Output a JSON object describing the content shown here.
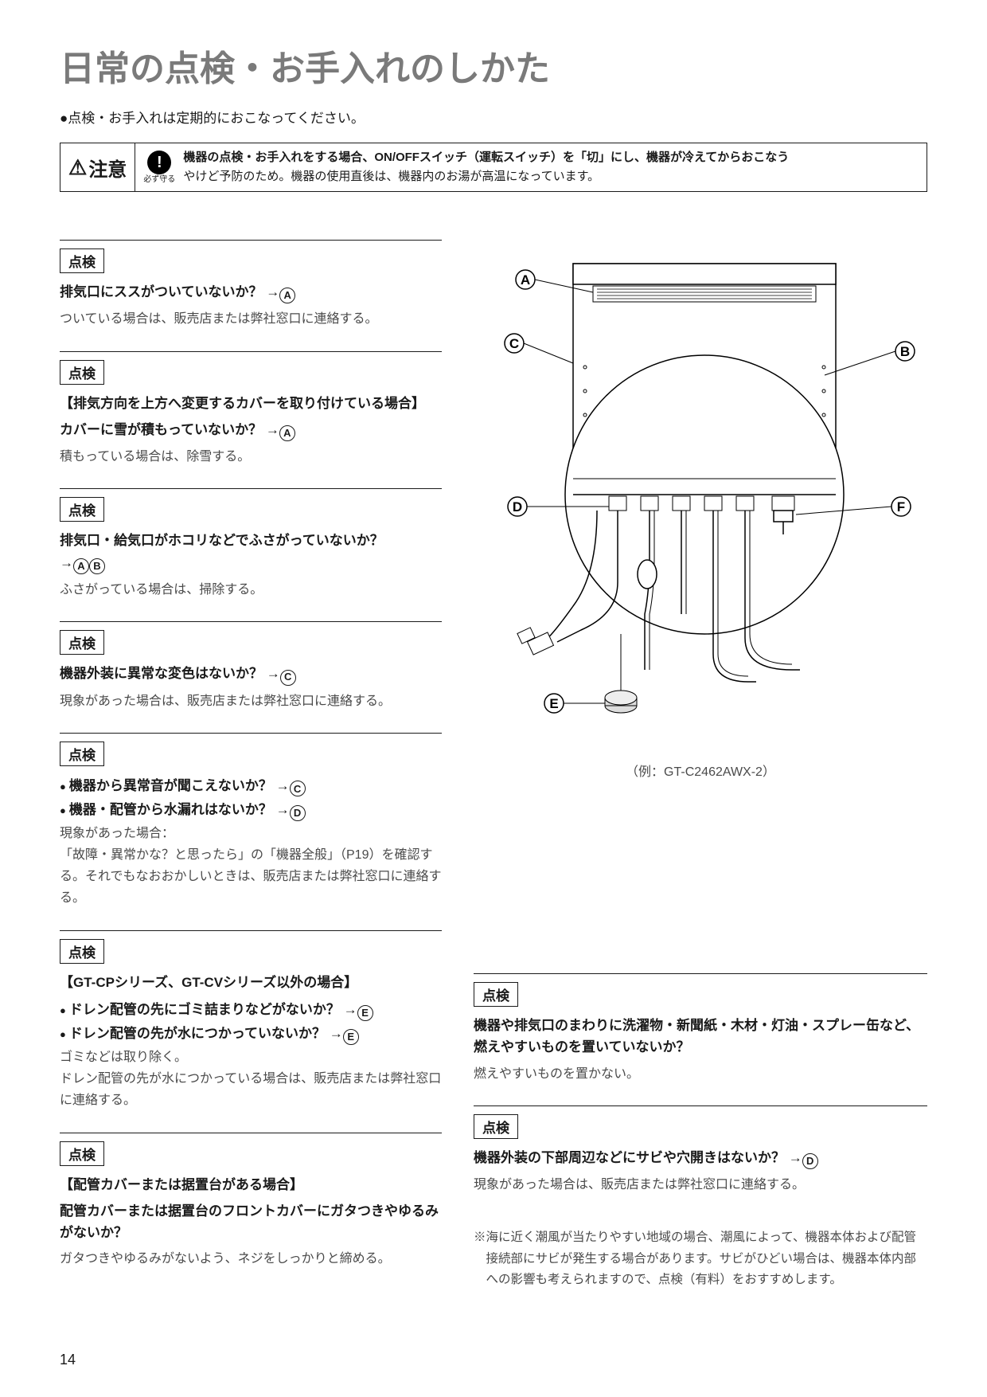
{
  "title": "日常の点検・お手入れのしかた",
  "intro": "●点検・お手入れは定期的におこなってください。",
  "caution": {
    "label": "注意",
    "must_label": "必ず守る",
    "line1": "機器の点検・お手入れをする場合、ON/OFFスイッチ（運転スイッチ）を「切」にし、機器が冷えてからおこなう",
    "line2": "やけど予防のため。機器の使用直後は、機器内のお湯が高温になっています。"
  },
  "tag_label": "点検",
  "left": [
    {
      "title_pre": "排気口にススがついていないか？ →",
      "refs": [
        "A"
      ],
      "body": "ついている場合は、販売店または弊社窓口に連絡する。"
    },
    {
      "pretitle": "【排気方向を上方へ変更するカバーを取り付けている場合】",
      "title_pre": "カバーに雪が積もっていないか？ →",
      "refs": [
        "A"
      ],
      "body": "積もっている場合は、除雪する。"
    },
    {
      "title_pre": "排気口・給気口がホコリなどでふさがっていないか？\n→",
      "refs": [
        "A",
        "B"
      ],
      "body": "ふさがっている場合は、掃除する。"
    },
    {
      "title_pre": "機器外装に異常な変色はないか？ →",
      "refs": [
        "C"
      ],
      "body": "現象があった場合は、販売店または弊社窓口に連絡する。"
    },
    {
      "bullets": [
        {
          "t": "機器から異常音が聞こえないか？ →",
          "refs": [
            "C"
          ]
        },
        {
          "t": "機器・配管から水漏れはないか？ →",
          "refs": [
            "D"
          ]
        }
      ],
      "body": "現象があった場合：\n「故障・異常かな？と思ったら」の「機器全般」（P19）を確認する。それでもなおおかしいときは、販売店または弊社窓口に連絡する。"
    },
    {
      "pretitle": "【GT-CPシリーズ、GT-CVシリーズ以外の場合】",
      "bullets": [
        {
          "t": "ドレン配管の先にゴミ詰まりなどがないか？ →",
          "refs": [
            "E"
          ]
        },
        {
          "t": "ドレン配管の先が水につかっていないか？ →",
          "refs": [
            "E"
          ]
        }
      ],
      "body": "ゴミなどは取り除く。\nドレン配管の先が水につかっている場合は、販売店または弊社窓口に連絡する。"
    },
    {
      "pretitle": "【配管カバーまたは据置台がある場合】",
      "title_plain": "配管カバーまたは据置台のフロントカバーにガタつきやゆるみがないか？",
      "body": "ガタつきやゆるみがないよう、ネジをしっかりと締める。"
    }
  ],
  "diagram_caption": "（例：GT-C2462AWX-2）",
  "diagram_labels": {
    "A": "A",
    "B": "B",
    "C": "C",
    "D": "D",
    "E": "E",
    "F": "F"
  },
  "right": [
    {
      "title_plain": "機器や排気口のまわりに洗濯物・新聞紙・木材・灯油・スプレー缶など、燃えやすいものを置いていないか？",
      "body": "燃えやすいものを置かない。"
    },
    {
      "title_pre": "機器外装の下部周辺などにサビや穴開きはないか？ →",
      "refs": [
        "D"
      ],
      "body": "現象があった場合は、販売店または弊社窓口に連絡する。"
    }
  ],
  "note": "※海に近く潮風が当たりやすい地域の場合、潮風によって、機器本体および配管接続部にサビが発生する場合があります。サビがひどい場合は、機器本体内部への影響も考えられますので、点検（有料）をおすすめします。",
  "page": "14"
}
